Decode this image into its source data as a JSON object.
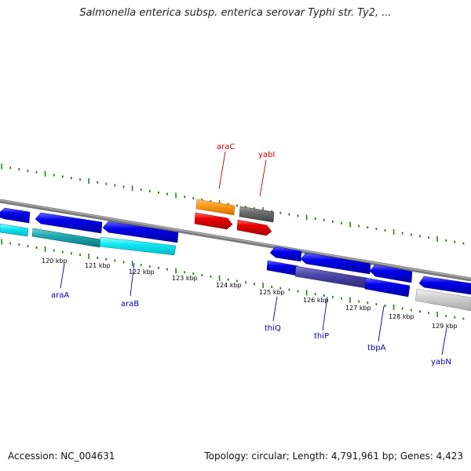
{
  "title": "Salmonella enterica subsp. enterica serovar Typhi str. Ty2, ...",
  "footer": {
    "accession": "Accession: NC_004631",
    "summary": "Topology: circular; Length: 4,791,961 bp; Genes: 4,423"
  },
  "colors": {
    "backbone": "#8a8a8a",
    "ticks": "#2e7d1e",
    "forward_label": "#cc0000",
    "reverse_label": "#0000aa"
  },
  "scale_labels": [
    {
      "kbp": 120,
      "text": "120 kbp"
    },
    {
      "kbp": 121,
      "text": "121 kbp"
    },
    {
      "kbp": 122,
      "text": "122 kbp"
    },
    {
      "kbp": 123,
      "text": "123 kbp"
    },
    {
      "kbp": 124,
      "text": "124 kbp"
    },
    {
      "kbp": 125,
      "text": "125 kbp"
    },
    {
      "kbp": 126,
      "text": "126 kbp"
    },
    {
      "kbp": 127,
      "text": "127 kbp"
    },
    {
      "kbp": 128,
      "text": "128 kbp"
    },
    {
      "kbp": 129,
      "text": "129 kbp"
    }
  ],
  "gene_labels": [
    {
      "name": "araC",
      "strand": "forward"
    },
    {
      "name": "yabI",
      "strand": "forward"
    },
    {
      "name": "araA",
      "strand": "reverse"
    },
    {
      "name": "araB",
      "strand": "reverse"
    },
    {
      "name": "thiQ",
      "strand": "reverse"
    },
    {
      "name": "thiP",
      "strand": "reverse"
    },
    {
      "name": "tbpA",
      "strand": "reverse"
    },
    {
      "name": "yabN",
      "strand": "reverse"
    }
  ]
}
